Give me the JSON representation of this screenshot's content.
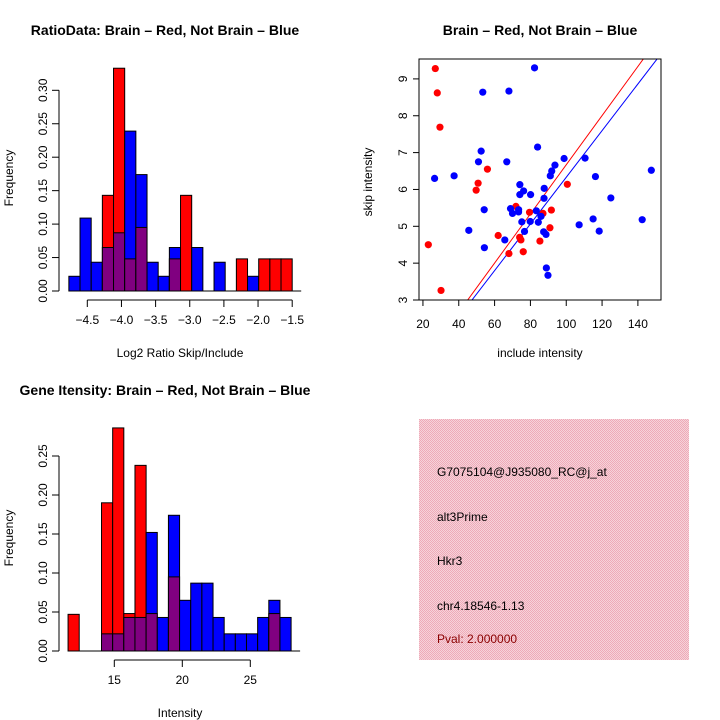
{
  "colors": {
    "brain": "#ff0000",
    "not_brain": "#0000ff",
    "overlap": "#800080",
    "info_bg": "#f4c2cc",
    "pval": "#8b0000"
  },
  "chart_data": [
    {
      "type": "bar",
      "title": "RatioData: Brain – Red, Not Brain – Blue",
      "xlabel": "Log2 Ratio Skip/Include",
      "ylabel": "Frequency",
      "bin_start": -4.77,
      "bin_width": 0.1635,
      "xticks": [
        -4.5,
        -4.0,
        -3.5,
        -3.0,
        -2.5,
        -2.0,
        -1.5
      ],
      "xtick_labels": [
        "−4.5",
        "−4.0",
        "−3.5",
        "−3.0",
        "−2.5",
        "−2.0",
        "−1.5"
      ],
      "yticks": [
        0,
        0.05,
        0.1,
        0.15,
        0.2,
        0.25,
        0.3
      ],
      "ytick_labels": [
        "0.00",
        "0.05",
        "0.10",
        "0.15",
        "0.20",
        "0.25",
        "0.30"
      ],
      "series": [
        {
          "name": "Brain",
          "color": "red",
          "values": [
            0,
            0,
            0,
            0.143,
            0.333,
            0.048,
            0.095,
            0,
            0,
            0.048,
            0.143,
            0,
            0,
            0,
            0,
            0.048,
            0,
            0.048,
            0.048,
            0.048
          ]
        },
        {
          "name": "Not Brain",
          "color": "blue",
          "values": [
            0.022,
            0.109,
            0.043,
            0.065,
            0.087,
            0.239,
            0.174,
            0.043,
            0.022,
            0.065,
            0,
            0.065,
            0,
            0.043,
            0,
            0,
            0.022,
            0,
            0,
            0
          ]
        }
      ]
    },
    {
      "type": "scatter",
      "title": "Brain – Red, Not Brain – Blue",
      "xlabel": "include intensity",
      "ylabel": "skip intensity",
      "xlim": [
        17.8,
        152.9
      ],
      "ylim": [
        3,
        9.54
      ],
      "xticks": [
        20,
        40,
        60,
        80,
        100,
        120,
        140
      ],
      "yticks": [
        3,
        4,
        5,
        6,
        7,
        8,
        9
      ],
      "lines": [
        {
          "name": "Brain fit",
          "color": "red",
          "intercept": 0,
          "slope": 0.0667
        },
        {
          "name": "Not Brain fit",
          "color": "blue",
          "intercept": 0,
          "slope": 0.0633
        }
      ],
      "series": [
        {
          "name": "Brain",
          "color": "red",
          "points": [
            [
              26.9,
              9.28
            ],
            [
              28.0,
              8.62
            ],
            [
              29.5,
              7.69
            ],
            [
              23.0,
              4.5
            ],
            [
              30.1,
              3.26
            ],
            [
              50.8,
              6.17
            ],
            [
              49.7,
              5.98
            ],
            [
              56.0,
              6.55
            ],
            [
              62.0,
              4.75
            ],
            [
              68.0,
              4.26
            ],
            [
              71.9,
              5.54
            ],
            [
              74.0,
              4.7
            ],
            [
              74.7,
              4.63
            ],
            [
              76.0,
              4.31
            ],
            [
              79.5,
              5.38
            ],
            [
              85.3,
              4.6
            ],
            [
              87.0,
              5.35
            ],
            [
              91.7,
              5.44
            ],
            [
              90.9,
              4.96
            ],
            [
              100.6,
              6.14
            ]
          ]
        },
        {
          "name": "Not Brain",
          "color": "blue",
          "points": [
            [
              82.3,
              9.3
            ],
            [
              53.4,
              8.64
            ],
            [
              68.0,
              8.67
            ],
            [
              84.0,
              7.15
            ],
            [
              52.5,
              7.04
            ],
            [
              51.0,
              6.75
            ],
            [
              66.8,
              6.75
            ],
            [
              26.5,
              6.3
            ],
            [
              37.4,
              6.37
            ],
            [
              98.8,
              6.84
            ],
            [
              110.5,
              6.85
            ],
            [
              93.7,
              6.66
            ],
            [
              91.9,
              6.5
            ],
            [
              91.1,
              6.37
            ],
            [
              116.3,
              6.35
            ],
            [
              147.5,
              6.52
            ],
            [
              74.1,
              6.13
            ],
            [
              76.2,
              5.96
            ],
            [
              87.7,
              6.03
            ],
            [
              74.1,
              5.86
            ],
            [
              80.1,
              5.86
            ],
            [
              87.6,
              5.76
            ],
            [
              124.9,
              5.77
            ],
            [
              54.2,
              5.45
            ],
            [
              68.9,
              5.48
            ],
            [
              73.4,
              5.45
            ],
            [
              70.0,
              5.35
            ],
            [
              73.4,
              5.39
            ],
            [
              83.3,
              5.42
            ],
            [
              85.9,
              5.27
            ],
            [
              75.2,
              5.12
            ],
            [
              79.9,
              5.13
            ],
            [
              84.4,
              5.11
            ],
            [
              115.0,
              5.2
            ],
            [
              107.2,
              5.04
            ],
            [
              142.4,
              5.18
            ],
            [
              45.6,
              4.89
            ],
            [
              76.7,
              4.86
            ],
            [
              87.4,
              4.85
            ],
            [
              118.4,
              4.87
            ],
            [
              88.7,
              4.78
            ],
            [
              65.7,
              4.63
            ],
            [
              54.3,
              4.42
            ],
            [
              88.9,
              3.87
            ],
            [
              89.8,
              3.67
            ]
          ]
        }
      ]
    },
    {
      "type": "bar",
      "title": "Gene Itensity: Brain – Red, Not Brain – Blue",
      "xlabel": "Intensity",
      "ylabel": "Frequency",
      "bin_start": 11.6,
      "bin_width": 0.82,
      "xticks": [
        15,
        20,
        25
      ],
      "xtick_labels": [
        "15",
        "20",
        "25"
      ],
      "yticks": [
        0,
        0.05,
        0.1,
        0.15,
        0.2,
        0.25
      ],
      "ytick_labels": [
        "0.00",
        "0.05",
        "0.10",
        "0.15",
        "0.20",
        "0.25"
      ],
      "series": [
        {
          "name": "Brain",
          "color": "red",
          "values": [
            0.047,
            0,
            0,
            0.19,
            0.286,
            0.048,
            0.238,
            0.048,
            0,
            0.095,
            0,
            0,
            0,
            0,
            0,
            0,
            0,
            0,
            0.048,
            0
          ]
        },
        {
          "name": "Not Brain",
          "color": "blue",
          "values": [
            0,
            0,
            0,
            0.022,
            0.022,
            0.043,
            0.043,
            0.152,
            0.043,
            0.174,
            0.065,
            0.087,
            0.087,
            0.043,
            0.022,
            0.022,
            0.022,
            0.043,
            0.065,
            0.043
          ]
        }
      ]
    }
  ],
  "info": {
    "probe_id": "G7075104@J935080_RC@j_at",
    "event_type": "alt3Prime",
    "gene": "Hkr3",
    "location": "chr4.18546-1.13",
    "pval": "Pval: 2.000000"
  }
}
